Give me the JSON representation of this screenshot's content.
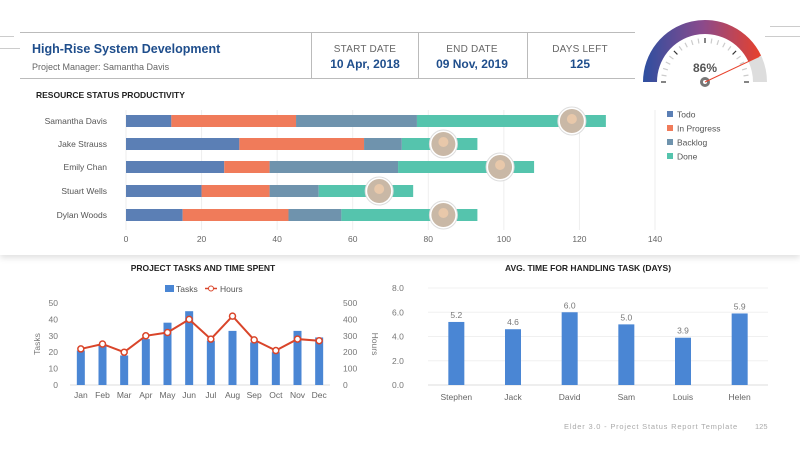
{
  "header": {
    "title": "High-Rise System Development",
    "manager": "Project Manager: Samantha Davis",
    "start_label": "START DATE",
    "start_value": "10 Apr, 2018",
    "end_label": "END DATE",
    "end_value": "09 Nov, 2019",
    "days_label": "DAYS LEFT",
    "days_value": "125"
  },
  "gauge": {
    "value_label": "86%",
    "value": 86,
    "colors": [
      "#2d4fa0",
      "#8a4a8c",
      "#e8412b"
    ]
  },
  "resource": {
    "title": "RESOURCE STATUS PRODUCTIVITY"
  },
  "tasks_chart": {
    "title": "PROJECT TASKS AND TIME SPENT"
  },
  "avg_chart": {
    "title": "AVG. TIME FOR HANDLING TASK (DAYS)"
  },
  "footer": {
    "text": "Elder 3.0 - Project Status Report Template",
    "page": "125"
  },
  "chart_data": [
    {
      "type": "bar",
      "orientation": "horizontal",
      "stacked": true,
      "title": "RESOURCE STATUS PRODUCTIVITY",
      "categories": [
        "Samantha Davis",
        "Jake Strauss",
        "Emily Chan",
        "Stuart Wells",
        "Dylan Woods"
      ],
      "series": [
        {
          "name": "Todo",
          "color": "#5b7fb5",
          "values": [
            12,
            30,
            26,
            20,
            15
          ]
        },
        {
          "name": "In Progress",
          "color": "#f07b5a",
          "values": [
            33,
            33,
            12,
            18,
            28
          ]
        },
        {
          "name": "Backlog",
          "color": "#6f93ad",
          "values": [
            32,
            10,
            34,
            13,
            14
          ]
        },
        {
          "name": "Done",
          "color": "#55c4ad",
          "values": [
            50,
            20,
            36,
            25,
            36
          ]
        }
      ],
      "xlim": [
        0,
        140
      ],
      "xticks": [
        "0",
        "20",
        "40",
        "60",
        "80",
        "100",
        "120",
        "140"
      ],
      "legend": "right",
      "grid": true
    },
    {
      "type": "bar+line",
      "title": "PROJECT TASKS AND TIME SPENT",
      "categories": [
        "Jan",
        "Feb",
        "Mar",
        "Apr",
        "May",
        "Jun",
        "Jul",
        "Aug",
        "Sep",
        "Oct",
        "Nov",
        "Dec"
      ],
      "series": [
        {
          "name": "Tasks",
          "type": "bar",
          "axis": "left",
          "color": "#4a86d4",
          "values": [
            21,
            24,
            18,
            28,
            38,
            45,
            27,
            33,
            26,
            20,
            33,
            29
          ]
        },
        {
          "name": "Hours",
          "type": "line",
          "axis": "right",
          "color": "#d9452a",
          "values": [
            220,
            250,
            200,
            300,
            320,
            400,
            280,
            420,
            275,
            210,
            280,
            270
          ]
        }
      ],
      "ylabel": "Tasks",
      "y2label": "Hours",
      "ylim": [
        0,
        50
      ],
      "y2lim": [
        0,
        500
      ],
      "yticks": [
        "0",
        "10",
        "20",
        "30",
        "40",
        "50"
      ],
      "y2ticks": [
        "0",
        "100",
        "200",
        "300",
        "400",
        "500"
      ],
      "legend": "top"
    },
    {
      "type": "bar",
      "title": "AVG. TIME FOR HANDLING TASK (DAYS)",
      "categories": [
        "Stephen",
        "Jack",
        "David",
        "Sam",
        "Louis",
        "Helen"
      ],
      "values": [
        5.2,
        4.6,
        6.0,
        5.0,
        3.9,
        5.9
      ],
      "labels": [
        "5.2",
        "4.6",
        "6.0",
        "5.0",
        "3.9",
        "5.9"
      ],
      "color": "#4a86d4",
      "ylim": [
        0,
        8
      ],
      "yticks": [
        "0.0",
        "2.0",
        "4.0",
        "6.0",
        "8.0"
      ],
      "grid": true
    }
  ]
}
